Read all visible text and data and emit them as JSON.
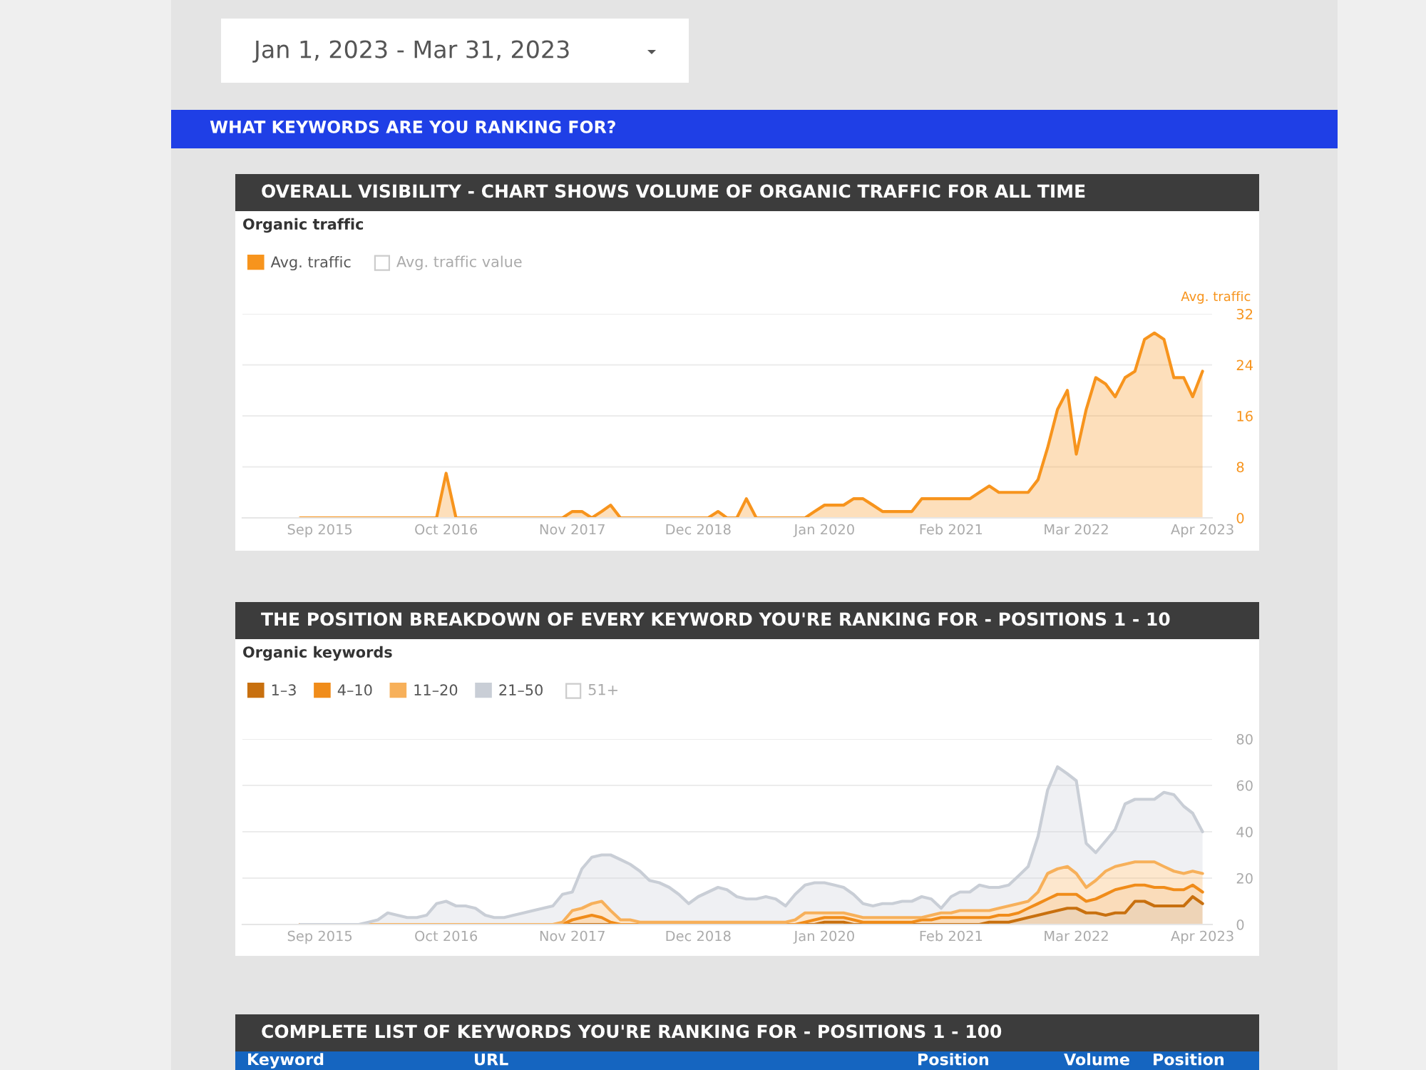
{
  "chart_data": [
    {
      "type": "area",
      "title": "OVERALL VISIBILITY - CHART SHOWS VOLUME OF ORGANIC TRAFFIC FOR ALL TIME",
      "subtitle": "Organic traffic",
      "ylabel": "Avg. traffic",
      "annotations": [
        "Avg. traffic value",
        "Jan 1, 2023 - Mar 31, 2023",
        "WHAT KEYWORDS ARE YOU RANKING FOR?"
      ],
      "x": [
        "2015-07",
        "2015-08",
        "2015-09",
        "2015-10",
        "2015-11",
        "2015-12",
        "2016-01",
        "2016-02",
        "2016-03",
        "2016-04",
        "2016-05",
        "2016-06",
        "2016-07",
        "2016-08",
        "2016-09",
        "2016-10",
        "2016-11",
        "2016-12",
        "2017-01",
        "2017-02",
        "2017-03",
        "2017-04",
        "2017-05",
        "2017-06",
        "2017-07",
        "2017-08",
        "2017-09",
        "2017-10",
        "2017-11",
        "2017-12",
        "2018-01",
        "2018-02",
        "2018-03",
        "2018-04",
        "2018-05",
        "2018-06",
        "2018-07",
        "2018-08",
        "2018-09",
        "2018-10",
        "2018-11",
        "2018-12",
        "2019-01",
        "2019-02",
        "2019-03",
        "2019-04",
        "2019-05",
        "2019-06",
        "2019-07",
        "2019-08",
        "2019-09",
        "2019-10",
        "2019-11",
        "2019-12",
        "2020-01",
        "2020-02",
        "2020-03",
        "2020-04",
        "2020-05",
        "2020-06",
        "2020-07",
        "2020-08",
        "2020-09",
        "2020-10",
        "2020-11",
        "2020-12",
        "2021-01",
        "2021-02",
        "2021-03",
        "2021-04",
        "2021-05",
        "2021-06",
        "2021-07",
        "2021-08",
        "2021-09",
        "2021-10",
        "2021-11",
        "2021-12",
        "2022-01",
        "2022-02",
        "2022-03",
        "2022-04",
        "2022-05",
        "2022-06",
        "2022-07",
        "2022-08",
        "2022-09",
        "2022-10",
        "2022-11",
        "2022-12",
        "2023-01",
        "2023-02",
        "2023-03",
        "2023-04"
      ],
      "series": [
        {
          "name": "Avg. traffic",
          "color": "#f7941d",
          "values": [
            0,
            0,
            0,
            0,
            0,
            0,
            0,
            0,
            0,
            0,
            0,
            0,
            0,
            0,
            0,
            7,
            0,
            0,
            0,
            0,
            0,
            0,
            0,
            0,
            0,
            0,
            0,
            0,
            1,
            1,
            0,
            1,
            2,
            0,
            0,
            0,
            0,
            0,
            0,
            0,
            0,
            0,
            0,
            1,
            0,
            0,
            3,
            0,
            0,
            0,
            0,
            0,
            0,
            1,
            2,
            2,
            2,
            3,
            3,
            2,
            1,
            1,
            1,
            1,
            3,
            3,
            3,
            3,
            3,
            3,
            4,
            5,
            4,
            4,
            4,
            4,
            6,
            11,
            17,
            20,
            10,
            17,
            22,
            21,
            19,
            22,
            23,
            28,
            29,
            28,
            22,
            22,
            19,
            23
          ]
        }
      ],
      "xlim": [
        "2015-01-01",
        "2023-05-01"
      ],
      "xticks": [
        {
          "value": "2015-09-01",
          "label": "Sep 2015"
        },
        {
          "value": "2016-10-01",
          "label": "Oct 2016"
        },
        {
          "value": "2017-11-01",
          "label": "Nov 2017"
        },
        {
          "value": "2018-12-01",
          "label": "Dec 2018"
        },
        {
          "value": "2020-01-01",
          "label": "Jan 2020"
        },
        {
          "value": "2021-02-01",
          "label": "Feb 2021"
        },
        {
          "value": "2022-03-01",
          "label": "Mar 2022"
        },
        {
          "value": "2023-04-01",
          "label": "Apr 2023"
        }
      ],
      "ylim": [
        0,
        32
      ],
      "yticks": [
        0,
        8,
        16,
        24,
        32
      ],
      "grid": "y",
      "legend": "top left",
      "marker": "none",
      "line_style": "solid"
    },
    {
      "type": "area",
      "stacked": true,
      "title": "THE POSITION BREAKDOWN OF EVERY KEYWORD YOU'RE RANKING FOR - POSITIONS 1 - 10",
      "subtitle": "Organic keywords",
      "annotations": [
        "51+",
        "COMPLETE LIST OF KEYWORDS YOU'RE RANKING FOR - POSITIONS 1 - 100",
        "Keyword",
        "URL",
        "Position",
        "Volume",
        "Position"
      ],
      "x": [
        "2015-07",
        "2015-08",
        "2015-09",
        "2015-10",
        "2015-11",
        "2015-12",
        "2016-01",
        "2016-02",
        "2016-03",
        "2016-04",
        "2016-05",
        "2016-06",
        "2016-07",
        "2016-08",
        "2016-09",
        "2016-10",
        "2016-11",
        "2016-12",
        "2017-01",
        "2017-02",
        "2017-03",
        "2017-04",
        "2017-05",
        "2017-06",
        "2017-07",
        "2017-08",
        "2017-09",
        "2017-10",
        "2017-11",
        "2017-12",
        "2018-01",
        "2018-02",
        "2018-03",
        "2018-04",
        "2018-05",
        "2018-06",
        "2018-07",
        "2018-08",
        "2018-09",
        "2018-10",
        "2018-11",
        "2018-12",
        "2019-01",
        "2019-02",
        "2019-03",
        "2019-04",
        "2019-05",
        "2019-06",
        "2019-07",
        "2019-08",
        "2019-09",
        "2019-10",
        "2019-11",
        "2019-12",
        "2020-01",
        "2020-02",
        "2020-03",
        "2020-04",
        "2020-05",
        "2020-06",
        "2020-07",
        "2020-08",
        "2020-09",
        "2020-10",
        "2020-11",
        "2020-12",
        "2021-01",
        "2021-02",
        "2021-03",
        "2021-04",
        "2021-05",
        "2021-06",
        "2021-07",
        "2021-08",
        "2021-09",
        "2021-10",
        "2021-11",
        "2021-12",
        "2022-01",
        "2022-02",
        "2022-03",
        "2022-04",
        "2022-05",
        "2022-06",
        "2022-07",
        "2022-08",
        "2022-09",
        "2022-10",
        "2022-11",
        "2022-12",
        "2023-01",
        "2023-02",
        "2023-03",
        "2023-04"
      ],
      "series": [
        {
          "name": "1–3",
          "color": "#c8700f",
          "values": [
            0,
            0,
            0,
            0,
            0,
            0,
            0,
            0,
            0,
            0,
            0,
            0,
            0,
            0,
            0,
            0,
            0,
            0,
            0,
            0,
            0,
            0,
            0,
            0,
            0,
            0,
            0,
            0,
            0,
            0,
            0,
            0,
            0,
            0,
            0,
            0,
            0,
            0,
            0,
            0,
            0,
            0,
            0,
            0,
            0,
            0,
            0,
            0,
            0,
            0,
            0,
            0,
            0,
            0,
            1,
            1,
            1,
            0,
            0,
            0,
            0,
            0,
            0,
            0,
            0,
            0,
            0,
            0,
            0,
            0,
            0,
            1,
            1,
            1,
            2,
            3,
            4,
            5,
            6,
            7,
            7,
            5,
            5,
            4,
            5,
            5,
            10,
            10,
            8,
            8,
            8,
            8,
            12,
            9
          ]
        },
        {
          "name": "4–10",
          "color": "#f08c1a",
          "values": [
            0,
            0,
            0,
            0,
            0,
            0,
            0,
            0,
            0,
            0,
            0,
            0,
            0,
            0,
            0,
            0,
            0,
            0,
            0,
            0,
            0,
            0,
            0,
            0,
            0,
            0,
            0,
            0,
            2,
            3,
            4,
            3,
            1,
            0,
            0,
            0,
            0,
            0,
            0,
            0,
            0,
            0,
            0,
            0,
            0,
            0,
            0,
            0,
            0,
            0,
            0,
            0,
            1,
            2,
            2,
            2,
            2,
            2,
            1,
            1,
            1,
            1,
            1,
            1,
            2,
            2,
            3,
            3,
            3,
            3,
            3,
            2,
            3,
            3,
            3,
            4,
            5,
            6,
            7,
            6,
            6,
            5,
            6,
            9,
            10,
            11,
            7,
            7,
            8,
            8,
            7,
            7,
            5,
            5
          ]
        },
        {
          "name": "11–20",
          "color": "#f7b05a",
          "values": [
            0,
            0,
            0,
            0,
            0,
            0,
            0,
            0,
            0,
            0,
            0,
            0,
            0,
            0,
            0,
            0,
            0,
            0,
            0,
            0,
            0,
            0,
            0,
            0,
            0,
            0,
            0,
            1,
            4,
            4,
            5,
            7,
            5,
            2,
            2,
            1,
            1,
            1,
            1,
            1,
            1,
            1,
            1,
            1,
            1,
            1,
            1,
            1,
            1,
            1,
            1,
            2,
            4,
            3,
            2,
            2,
            2,
            2,
            2,
            2,
            2,
            2,
            2,
            2,
            1,
            2,
            2,
            2,
            3,
            3,
            3,
            3,
            3,
            4,
            4,
            3,
            5,
            11,
            11,
            12,
            9,
            6,
            8,
            10,
            10,
            10,
            10,
            10,
            11,
            9,
            8,
            7,
            6,
            8
          ]
        },
        {
          "name": "21–50",
          "color": "#c9ced6",
          "values": [
            0,
            0,
            0,
            0,
            0,
            0,
            0,
            1,
            2,
            5,
            4,
            3,
            3,
            4,
            9,
            10,
            8,
            8,
            7,
            4,
            3,
            3,
            4,
            5,
            6,
            7,
            8,
            12,
            8,
            17,
            20,
            20,
            24,
            26,
            24,
            22,
            18,
            17,
            15,
            12,
            8,
            11,
            13,
            15,
            14,
            11,
            10,
            10,
            11,
            10,
            7,
            11,
            12,
            13,
            13,
            12,
            11,
            9,
            6,
            5,
            6,
            6,
            7,
            7,
            9,
            7,
            2,
            7,
            8,
            8,
            11,
            10,
            9,
            9,
            12,
            15,
            24,
            36,
            44,
            40,
            40,
            19,
            12,
            13,
            16,
            26,
            27,
            27,
            27,
            32,
            33,
            29,
            25,
            18
          ]
        }
      ],
      "xlim": [
        "2015-01-01",
        "2023-05-01"
      ],
      "xticks": [
        {
          "value": "2015-09-01",
          "label": "Sep 2015"
        },
        {
          "value": "2016-10-01",
          "label": "Oct 2016"
        },
        {
          "value": "2017-11-01",
          "label": "Nov 2017"
        },
        {
          "value": "2018-12-01",
          "label": "Dec 2018"
        },
        {
          "value": "2020-01-01",
          "label": "Jan 2020"
        },
        {
          "value": "2021-02-01",
          "label": "Feb 2021"
        },
        {
          "value": "2022-03-01",
          "label": "Mar 2022"
        },
        {
          "value": "2023-04-01",
          "label": "Apr 2023"
        }
      ],
      "ylim": [
        0,
        80
      ],
      "yticks": [
        0,
        20,
        40,
        60,
        80
      ],
      "grid": "y",
      "legend": "top left",
      "marker": "none",
      "line_style": "solid"
    }
  ]
}
